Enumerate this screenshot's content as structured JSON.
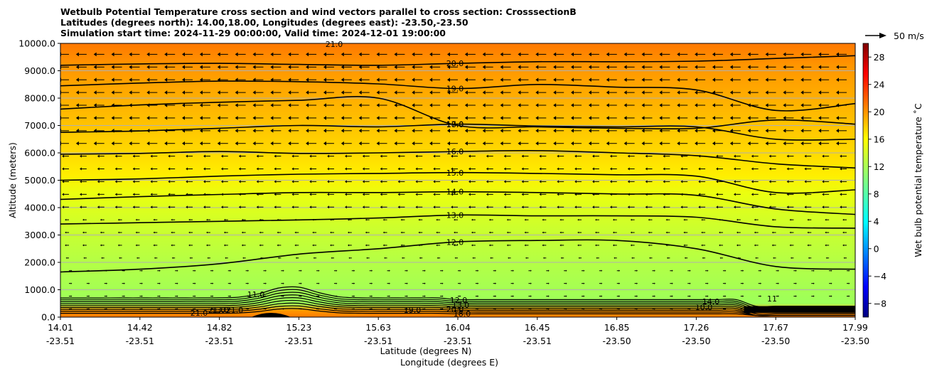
{
  "chart_data": {
    "type": "heatmap",
    "title": [
      "Wetbulb Potential Temperature cross section and wind vectors parallel to cross section: CrosssectionB",
      "Latitudes (degrees north): 14.00,18.00, Longitudes (degrees east): -23.50,-23.50",
      "Simulation start time: 2024-11-29 00:00:00, Valid time: 2024-12-01 19:00:00"
    ],
    "xlabel_lat": "Latitude (degrees N)",
    "xlabel_lon": "Longitude (degrees E)",
    "ylabel": "Altitude (meters)",
    "ylim": [
      0,
      10000
    ],
    "yticks": [
      "0.0",
      "1000.0",
      "2000.0",
      "3000.0",
      "4000.0",
      "5000.0",
      "6000.0",
      "7000.0",
      "8000.0",
      "9000.0",
      "10000.0"
    ],
    "xticks_lat": [
      "14.01",
      "14.42",
      "14.82",
      "15.23",
      "15.63",
      "16.04",
      "16.45",
      "16.85",
      "17.26",
      "17.67",
      "17.99"
    ],
    "xticks_lon": [
      "-23.51",
      "-23.51",
      "-23.51",
      "-23.51",
      "-23.51",
      "-23.51",
      "-23.51",
      "-23.50",
      "-23.50",
      "-23.50",
      "-23.50"
    ],
    "grid": "horizontal",
    "colorbar": {
      "label": "Wet bulb potential temperature $^\\circ$C",
      "label_display": "Wet bulb potential temperature ˚C",
      "colormap": "jet",
      "range": [
        -10,
        30
      ],
      "ticks": [
        "−8",
        "−4",
        "0",
        "4",
        "8",
        "12",
        "16",
        "20",
        "24",
        "28"
      ]
    },
    "quiver_key": {
      "label": "50 m/s"
    },
    "contours": [
      {
        "level": 20.0,
        "label": "20.0",
        "alt": [
          9200,
          9250,
          9270,
          9230,
          9200,
          9270,
          9330,
          9330,
          9350,
          9450,
          9550
        ]
      },
      {
        "level": 19.0,
        "label": "19.0",
        "alt": [
          8450,
          8550,
          8620,
          8600,
          8520,
          8350,
          8500,
          8400,
          8300,
          7550,
          7800
        ]
      },
      {
        "level": 18.0,
        "label": "18.0",
        "alt": [
          7600,
          7750,
          7850,
          7920,
          8000,
          7000,
          6950,
          6900,
          6900,
          7200,
          7050
        ]
      },
      {
        "level": 17.0,
        "label": "17.0",
        "alt": [
          6750,
          6800,
          6900,
          7000,
          6950,
          7050,
          6980,
          6950,
          6950,
          6500,
          6500
        ]
      },
      {
        "level": 16.0,
        "label": "16.0",
        "alt": [
          5950,
          5980,
          6050,
          5980,
          6000,
          6050,
          6080,
          6000,
          5900,
          5600,
          5450
        ]
      },
      {
        "level": 15.0,
        "label": "15.0",
        "alt": [
          5000,
          5050,
          5150,
          5220,
          5250,
          5280,
          5250,
          5200,
          5150,
          4550,
          4650
        ]
      },
      {
        "level": 14.0,
        "label": "14.0",
        "alt": [
          4300,
          4400,
          4480,
          4550,
          4550,
          4580,
          4550,
          4500,
          4450,
          3950,
          3750
        ]
      },
      {
        "level": 13.0,
        "label": "13.0",
        "alt": [
          3400,
          3450,
          3500,
          3550,
          3620,
          3730,
          3700,
          3700,
          3650,
          3300,
          3250
        ]
      },
      {
        "level": 12.0,
        "label": "12.0",
        "alt": [
          1650,
          1750,
          1950,
          2300,
          2500,
          2750,
          2800,
          2800,
          2500,
          1850,
          1750
        ]
      }
    ],
    "contour_labels_extra": [
      "21.0",
      "11.0",
      "12.0",
      "13.0",
      "19.0",
      "20.0",
      "21.0",
      "18.0",
      "21.0",
      "13.0",
      "21.0",
      "14.0",
      "10.0",
      "11"
    ]
  }
}
